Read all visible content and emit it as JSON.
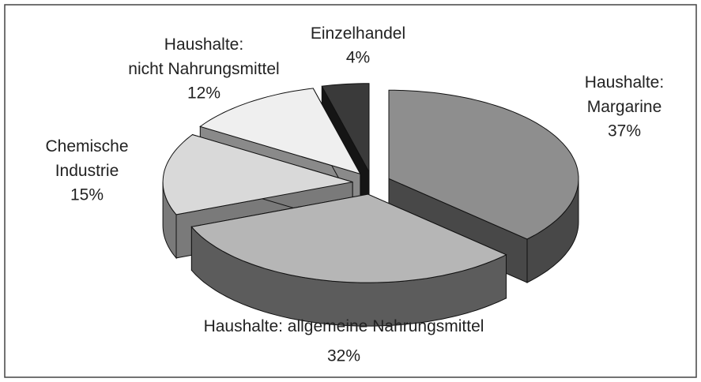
{
  "chart_data": {
    "type": "pie3d",
    "categories": [
      "Haushalte:\nMargarine",
      "Haushalte: allgemeine Nahrungsmittel",
      "Chemische\nIndustrie",
      "Haushalte:\nnicht Nahrungsmittel",
      "Einzelhandel"
    ],
    "values": [
      37,
      32,
      15,
      12,
      4
    ],
    "value_labels": [
      "37%",
      "32%",
      "15%",
      "12%",
      "4%"
    ],
    "colors": [
      "#8e8e8e",
      "#b6b6b6",
      "#d9d9d9",
      "#efefef",
      "#3a3a3a"
    ],
    "side_colors": [
      "#484848",
      "#5c5c5c",
      "#7a7a7a",
      "#8a8a8a",
      "#151515"
    ]
  }
}
